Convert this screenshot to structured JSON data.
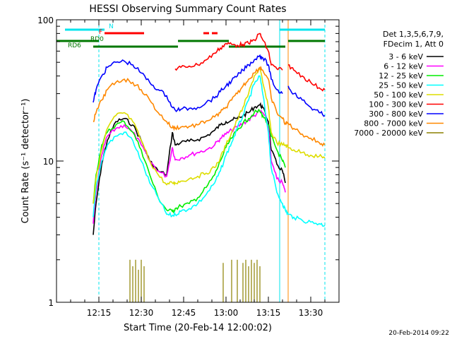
{
  "chart_data": {
    "type": "line",
    "title": "HESSI Observing Summary Count Rates",
    "xlabel": "Start Time (20-Feb-14 12:00:02)",
    "ylabel": "Count Rate (s⁻¹ detector⁻¹)",
    "y_scale": "log",
    "ylim": [
      1,
      100
    ],
    "xlim_minutes_after_start": [
      0,
      100
    ],
    "x_ticks": [
      "12:15",
      "12:30",
      "12:45",
      "13:00",
      "13:15",
      "13:30"
    ],
    "y_ticks": [
      "1",
      "10",
      "100"
    ],
    "timestamp": "20-Feb-2014 09:22",
    "legend": {
      "placement": "right",
      "header": [
        "Det 1,3,5,6,7,9,",
        "FDecim 1, Att 0"
      ]
    },
    "flag_labels": [
      "N",
      "F",
      "RD0",
      "RD6"
    ],
    "x_time_values": [
      "12:08",
      "12:10",
      "12:13",
      "12:14",
      "12:16",
      "12:18",
      "12:21",
      "12:24",
      "12:27",
      "12:30",
      "12:33",
      "12:36",
      "12:39",
      "12:41",
      "12:42",
      "12:44",
      "12:47",
      "12:50",
      "12:53",
      "12:56",
      "12:58",
      "13:00",
      "13:02",
      "13:04",
      "13:06",
      "13:08",
      "13:10",
      "13:12",
      "13:13",
      "13:15",
      "13:16",
      "13:18",
      "13:20",
      "13:21",
      "13:22",
      "13:24",
      "13:27",
      "13:30",
      "13:33",
      "13:35"
    ],
    "series": [
      {
        "name": "3 - 6 keV",
        "color": "#000000",
        "values": [
          null,
          null,
          3.0,
          5,
          9.5,
          14,
          19,
          20,
          18,
          14,
          10,
          8.5,
          8,
          16,
          13,
          13.5,
          13.8,
          14.2,
          15,
          16.5,
          18,
          19,
          19.5,
          20,
          21,
          22,
          24,
          25,
          24,
          19,
          12,
          9.5,
          8.5,
          7,
          null,
          null,
          null,
          null,
          null,
          null
        ]
      },
      {
        "name": "6 - 12 keV",
        "color": "#ff00ff",
        "values": [
          null,
          null,
          3.6,
          6,
          11,
          15,
          17,
          18,
          16,
          13,
          10,
          8.5,
          7.8,
          12.5,
          10.2,
          10.5,
          11,
          11.5,
          12,
          13,
          14.5,
          15.5,
          16.5,
          17.5,
          18.5,
          19.5,
          21,
          22.5,
          22,
          18,
          10,
          7.5,
          7,
          6,
          null,
          null,
          null,
          null,
          null,
          null
        ]
      },
      {
        "name": "12 - 25 keV",
        "color": "#00ee00",
        "values": [
          null,
          null,
          5.0,
          8,
          13,
          16,
          18,
          19,
          16,
          12,
          8,
          5.5,
          4.5,
          4.4,
          4.6,
          4.8,
          5,
          5.5,
          6.5,
          8,
          10,
          12.5,
          14.5,
          16.5,
          18.5,
          20,
          22,
          22.5,
          21,
          18,
          15,
          12,
          10,
          9,
          null,
          null,
          null,
          null,
          null,
          null
        ]
      },
      {
        "name": "25 - 50 keV",
        "color": "#00ffff",
        "values": [
          null,
          null,
          4.0,
          6.5,
          10,
          13,
          15,
          16,
          14,
          10,
          7,
          5.5,
          4.2,
          4.1,
          4.2,
          4.4,
          4.6,
          5,
          5.8,
          7,
          8.5,
          11,
          13.5,
          17,
          21,
          27,
          35,
          40,
          30,
          16,
          9,
          6,
          5,
          4.5,
          4.2,
          4,
          3.8,
          3.7,
          3.6,
          3.5
        ]
      },
      {
        "name": "50 - 100 keV",
        "color": "#dddd00",
        "values": [
          null,
          null,
          5.0,
          7.5,
          12,
          17,
          21,
          22,
          19,
          14,
          10,
          8,
          6.8,
          7,
          7,
          7.2,
          7.5,
          7.8,
          8.2,
          9,
          10.5,
          13,
          16,
          19.5,
          24,
          30,
          40,
          45,
          36,
          24,
          16,
          13.5,
          13,
          13,
          12.5,
          12,
          11.5,
          11,
          10.8,
          10.5
        ]
      },
      {
        "name": "100 - 300 keV",
        "color": "#ff0000",
        "values": [
          null,
          null,
          null,
          null,
          null,
          null,
          null,
          null,
          null,
          null,
          null,
          null,
          null,
          null,
          45,
          46,
          47,
          48,
          52,
          58,
          63,
          68,
          67,
          66,
          67,
          68,
          72,
          80,
          72,
          60,
          48,
          45,
          44,
          null,
          48,
          44,
          40,
          36,
          33,
          32
        ]
      },
      {
        "name": "300 - 800 keV",
        "color": "#0000ff",
        "values": [
          null,
          null,
          26,
          32,
          40,
          46,
          50,
          51,
          48,
          42,
          36,
          32,
          29,
          24,
          23,
          23.2,
          23.6,
          24,
          26,
          28,
          31,
          34,
          37,
          40,
          44,
          48,
          52,
          56,
          54,
          48,
          38,
          32,
          30,
          null,
          34,
          30,
          27,
          24,
          22,
          21
        ]
      },
      {
        "name": "800 - 7000 keV",
        "color": "#ff8800",
        "values": [
          null,
          null,
          19,
          22,
          27,
          32,
          36,
          38,
          36,
          32,
          27,
          22,
          19,
          17.2,
          17.2,
          17.4,
          17.6,
          18,
          19.2,
          20.5,
          22,
          24,
          27,
          30,
          34,
          38,
          42,
          46,
          44,
          38,
          28,
          22,
          20,
          18.5,
          18.5,
          17,
          15.5,
          14.5,
          13.5,
          13
        ]
      },
      {
        "name": "7000 - 20000 keV",
        "color": "#8b8000",
        "values": [
          null,
          null,
          null,
          null,
          null,
          null,
          null,
          null,
          null,
          null,
          null,
          null,
          null,
          null,
          null,
          null,
          null,
          null,
          null,
          null,
          null,
          null,
          null,
          null,
          null,
          null,
          null,
          null,
          null,
          null,
          null,
          null,
          null,
          null,
          null,
          null,
          null,
          null,
          null,
          null
        ],
        "spikes_time": [
          "12:26",
          "12:27",
          "12:28",
          "12:29",
          "12:30",
          "12:31",
          "12:59",
          "13:02",
          "13:04",
          "13:06",
          "13:07",
          "13:08",
          "13:09",
          "13:10",
          "13:11",
          "13:12"
        ],
        "spikes_value": [
          2.0,
          1.8,
          2.0,
          1.7,
          2.0,
          1.8,
          1.9,
          2.0,
          2.0,
          1.9,
          2.0,
          1.8,
          2.0,
          1.9,
          2.0,
          1.8
        ]
      }
    ],
    "flags": [
      {
        "label": "N",
        "color": "#00e5ee",
        "segments": [
          [
            "12:03",
            "12:17"
          ],
          [
            "13:19",
            "13:35"
          ]
        ]
      },
      {
        "label": "F",
        "color": "#ff0000",
        "segments": [
          [
            "12:17",
            "12:31"
          ],
          [
            "12:52",
            "12:54"
          ],
          [
            "12:55",
            "12:57"
          ]
        ]
      },
      {
        "label": "RD0",
        "color": "#007700",
        "segments": [
          [
            "12:00",
            "12:15"
          ],
          [
            "12:43",
            "13:01"
          ],
          [
            "13:22",
            "13:35"
          ]
        ]
      },
      {
        "label": "RD6",
        "color": "#007700",
        "segments": [
          [
            "12:13",
            "12:43"
          ],
          [
            "13:01",
            "13:21"
          ]
        ]
      }
    ],
    "vertical_markers": {
      "cyan_dashed": [
        "12:15",
        "13:35"
      ],
      "cyan_solid": [
        "13:19"
      ],
      "orange_solid": [
        "13:22"
      ]
    }
  }
}
